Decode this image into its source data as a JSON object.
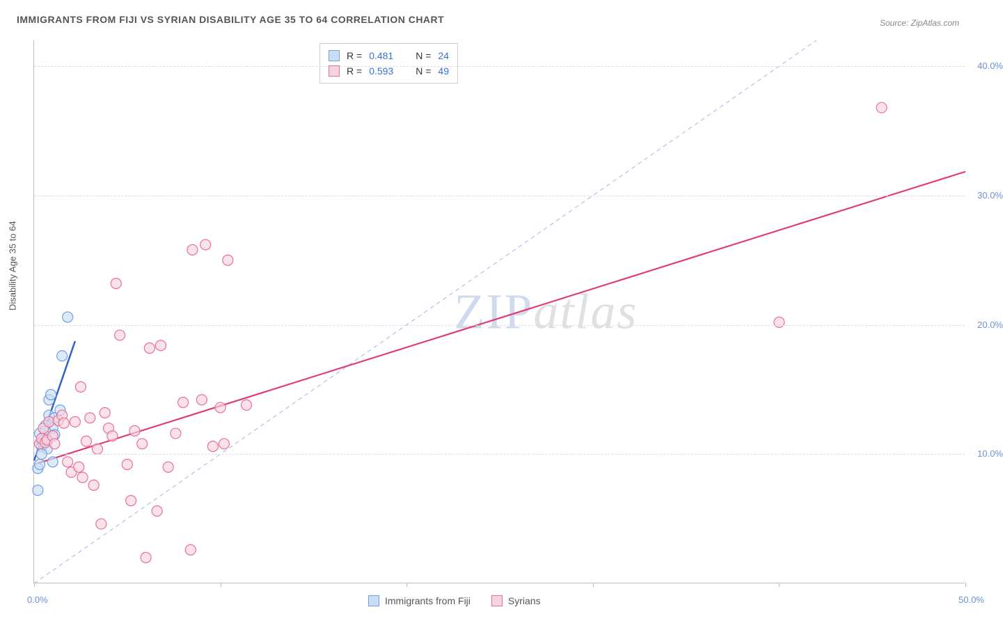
{
  "title": "IMMIGRANTS FROM FIJI VS SYRIAN DISABILITY AGE 35 TO 64 CORRELATION CHART",
  "source": "Source: ZipAtlas.com",
  "y_axis_title": "Disability Age 35 to 64",
  "watermark": {
    "part1": "ZIP",
    "part2": "atlas"
  },
  "chart": {
    "type": "scatter",
    "background_color": "#ffffff",
    "grid_color": "#dddddd",
    "axis_color": "#bbbbbb",
    "label_color": "#6a8fd8",
    "xlim": [
      0,
      50
    ],
    "ylim": [
      0,
      42
    ],
    "x_ticks": [
      0,
      10,
      20,
      30,
      40,
      50
    ],
    "x_tick_labels": [
      "0.0%",
      "",
      "",
      "",
      "",
      "50.0%"
    ],
    "y_ticks": [
      10,
      20,
      30,
      40
    ],
    "y_tick_labels": [
      "10.0%",
      "20.0%",
      "30.0%",
      "40.0%"
    ],
    "marker_radius": 7.5,
    "marker_stroke_width": 1.2,
    "identity_line": {
      "color": "#9bb8e8",
      "dash": "6 5",
      "width": 1
    },
    "series": [
      {
        "name": "Immigrants from Fiji",
        "fill": "#c9def5",
        "stroke": "#6d9fe2",
        "R": 0.481,
        "N": 24,
        "trend": {
          "slope": 4.2,
          "intercept": 9.5,
          "x0": 0,
          "x1": 2.2,
          "color": "#2f63c9",
          "width": 2.5
        },
        "points": [
          [
            0.2,
            7.2
          ],
          [
            0.2,
            8.9
          ],
          [
            0.3,
            9.2
          ],
          [
            0.4,
            10.6
          ],
          [
            0.4,
            11.0
          ],
          [
            0.5,
            10.8
          ],
          [
            0.5,
            11.2
          ],
          [
            0.6,
            12.2
          ],
          [
            0.6,
            11.4
          ],
          [
            0.7,
            11.0
          ],
          [
            0.7,
            10.4
          ],
          [
            0.8,
            13.0
          ],
          [
            0.8,
            14.2
          ],
          [
            0.9,
            14.6
          ],
          [
            1.0,
            12.0
          ],
          [
            1.0,
            9.4
          ],
          [
            1.1,
            11.5
          ],
          [
            1.1,
            12.8
          ],
          [
            1.4,
            13.4
          ],
          [
            1.5,
            17.6
          ],
          [
            1.8,
            20.6
          ],
          [
            0.3,
            11.6
          ],
          [
            0.4,
            10.0
          ],
          [
            0.6,
            11.8
          ]
        ]
      },
      {
        "name": "Syrians",
        "fill": "#f7d3dd",
        "stroke": "#e96f97",
        "R": 0.593,
        "N": 49,
        "trend": {
          "slope": 0.453,
          "intercept": 9.2,
          "x0": 0,
          "x1": 50,
          "color": "#e03d78",
          "width": 2.2
        },
        "points": [
          [
            0.3,
            10.8
          ],
          [
            0.4,
            11.2
          ],
          [
            0.5,
            12.0
          ],
          [
            0.6,
            10.9
          ],
          [
            0.7,
            11.1
          ],
          [
            0.8,
            12.5
          ],
          [
            1.0,
            11.4
          ],
          [
            1.1,
            10.8
          ],
          [
            1.3,
            12.6
          ],
          [
            1.5,
            13.0
          ],
          [
            1.6,
            12.4
          ],
          [
            1.8,
            9.4
          ],
          [
            2.0,
            8.6
          ],
          [
            2.2,
            12.5
          ],
          [
            2.4,
            9.0
          ],
          [
            2.5,
            15.2
          ],
          [
            2.6,
            8.2
          ],
          [
            2.8,
            11.0
          ],
          [
            3.0,
            12.8
          ],
          [
            3.2,
            7.6
          ],
          [
            3.4,
            10.4
          ],
          [
            3.6,
            4.6
          ],
          [
            3.8,
            13.2
          ],
          [
            4.0,
            12.0
          ],
          [
            4.2,
            11.4
          ],
          [
            4.4,
            23.2
          ],
          [
            4.6,
            19.2
          ],
          [
            5.0,
            9.2
          ],
          [
            5.2,
            6.4
          ],
          [
            5.4,
            11.8
          ],
          [
            5.8,
            10.8
          ],
          [
            6.0,
            2.0
          ],
          [
            6.2,
            18.2
          ],
          [
            6.6,
            5.6
          ],
          [
            6.8,
            18.4
          ],
          [
            7.2,
            9.0
          ],
          [
            7.6,
            11.6
          ],
          [
            8.0,
            14.0
          ],
          [
            8.4,
            2.6
          ],
          [
            8.5,
            25.8
          ],
          [
            9.0,
            14.2
          ],
          [
            9.2,
            26.2
          ],
          [
            9.6,
            10.6
          ],
          [
            10.0,
            13.6
          ],
          [
            10.2,
            10.8
          ],
          [
            10.4,
            25.0
          ],
          [
            11.4,
            13.8
          ],
          [
            40.0,
            20.2
          ],
          [
            45.5,
            36.8
          ]
        ]
      }
    ]
  },
  "legend_top": {
    "rows": [
      {
        "swatch_fill": "#c9def5",
        "swatch_stroke": "#6d9fe2",
        "r_label": "R =",
        "r_val": "0.481",
        "n_label": "N =",
        "n_val": "24"
      },
      {
        "swatch_fill": "#f7d3dd",
        "swatch_stroke": "#e96f97",
        "r_label": "R =",
        "r_val": "0.593",
        "n_label": "N =",
        "n_val": "49"
      }
    ]
  },
  "legend_bottom": {
    "items": [
      {
        "swatch_fill": "#c9def5",
        "swatch_stroke": "#6d9fe2",
        "label": "Immigrants from Fiji"
      },
      {
        "swatch_fill": "#f7d3dd",
        "swatch_stroke": "#e96f97",
        "label": "Syrians"
      }
    ]
  }
}
